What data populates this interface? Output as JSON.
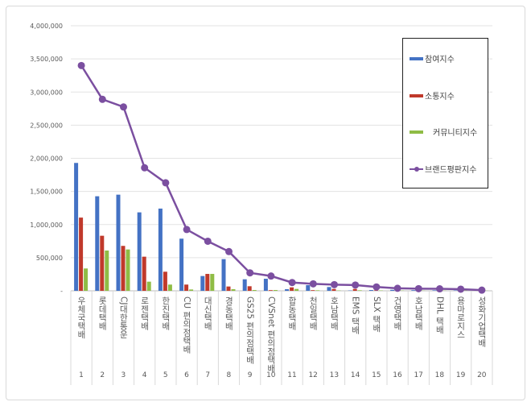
{
  "chart_data": {
    "type": "bar+line",
    "categories": [
      "우체국택배",
      "롯데택배",
      "CJ대한통운",
      "로젠택배",
      "한진택배",
      "CU 편의점택배",
      "대신택배",
      "경동택배",
      "GS25 편의점택배",
      "CVSnet 편의점택배",
      "합동택배",
      "천일택배",
      "호남택배",
      "EMS 택배",
      "SLX 택배",
      "건영택배",
      "호남택배",
      "DHL 택배",
      "용마로지스",
      "성화기업택배"
    ],
    "category_numbers": [
      "1",
      "2",
      "3",
      "4",
      "5",
      "6",
      "7",
      "8",
      "9",
      "10",
      "11",
      "12",
      "13",
      "14",
      "15",
      "16",
      "17",
      "18",
      "19",
      "20"
    ],
    "series": [
      {
        "name": "참여지수",
        "type": "bar",
        "color": "#4472c4",
        "values": [
          1930000,
          1427000,
          1451000,
          1184000,
          1241000,
          787000,
          223000,
          478000,
          174000,
          182000,
          24000,
          85000,
          57000,
          5000,
          12000,
          15000,
          10000,
          8000,
          6000,
          3000
        ]
      },
      {
        "name": "소통지수",
        "type": "bar",
        "color": "#c0392b",
        "values": [
          1105000,
          831000,
          678000,
          515000,
          288000,
          94000,
          255000,
          65000,
          69000,
          10000,
          52000,
          10000,
          28000,
          28000,
          8000,
          6000,
          5000,
          12000,
          4000,
          2000
        ]
      },
      {
        "name": "커뮤니티지수",
        "type": "bar",
        "color": "#8fbc45",
        "values": [
          337000,
          608000,
          624000,
          138000,
          94000,
          20000,
          255000,
          24000,
          12000,
          12000,
          28000,
          8000,
          5000,
          8000,
          5000,
          4000,
          3000,
          3000,
          3000,
          2000
        ]
      },
      {
        "name": "브랜드평판지수",
        "type": "line",
        "color": "#7b4fa0",
        "values": [
          3400000,
          2890000,
          2775000,
          1857000,
          1630000,
          925000,
          748000,
          592000,
          271000,
          223000,
          125000,
          105000,
          93000,
          87000,
          58000,
          38000,
          32000,
          30000,
          25000,
          10000
        ]
      }
    ],
    "ylim": [
      0,
      4000000
    ],
    "yticks": [
      "-",
      "500,000",
      "1,000,000",
      "1,500,000",
      "2,000,000",
      "2,500,000",
      "3,000,000",
      "3,500,000",
      "4,000,000"
    ],
    "grid": true,
    "legend": "right"
  }
}
